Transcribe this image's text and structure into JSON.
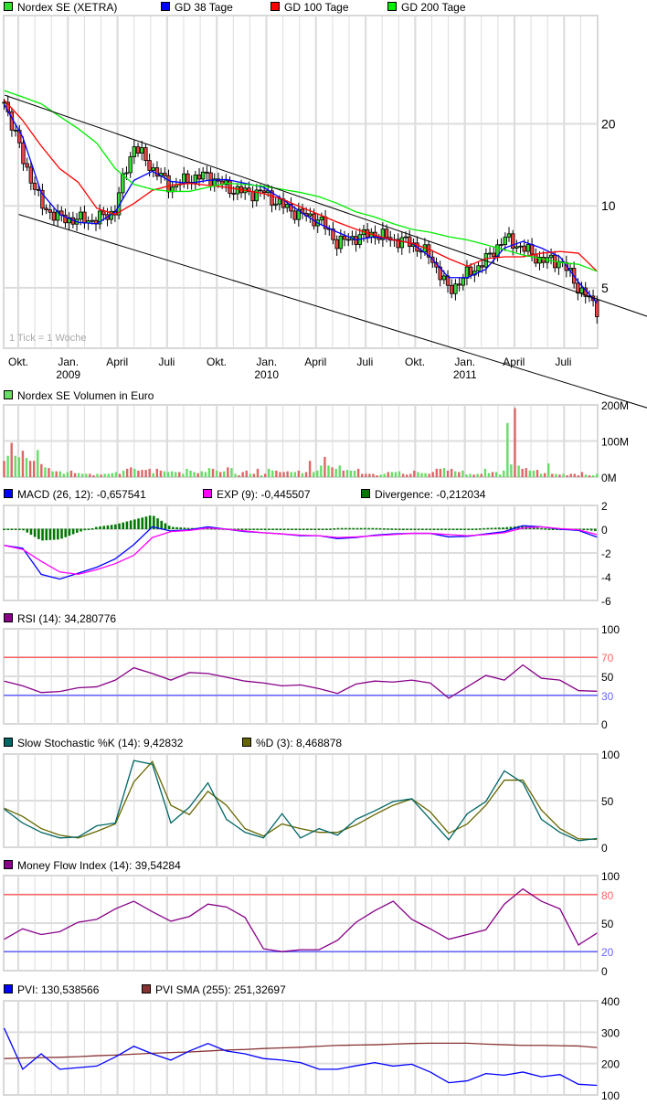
{
  "chart_data": [
    {
      "type": "candlestick",
      "legend": [
        {
          "label": "Nordex SE (XETRA)",
          "color": "#33dd33"
        },
        {
          "label": "GD 38 Tage",
          "color": "#0000ff"
        },
        {
          "label": "GD 100 Tage",
          "color": "#ff0000"
        },
        {
          "label": "GD 200 Tage",
          "color": "#00ee00"
        }
      ],
      "scale": "log",
      "ylim": [
        3,
        50
      ],
      "yticks": [
        {
          "value": 20,
          "label": "20"
        },
        {
          "value": 10,
          "label": "10"
        },
        {
          "value": 5,
          "label": "5"
        }
      ],
      "grid": true,
      "note": "1 Tick = 1 Woche",
      "date_range": [
        "2008-09-05",
        "2011-09-01"
      ],
      "xticks": [
        {
          "date": "2008-10-01",
          "label": "Okt."
        },
        {
          "date": "2009-01-01",
          "label": "Jan."
        },
        {
          "date": "2009-04-01",
          "label": "April"
        },
        {
          "date": "2009-07-01",
          "label": "Juli"
        },
        {
          "date": "2009-10-01",
          "label": "Okt."
        },
        {
          "date": "2010-01-01",
          "label": "Jan."
        },
        {
          "date": "2010-04-01",
          "label": "April"
        },
        {
          "date": "2010-07-01",
          "label": "Juli"
        },
        {
          "date": "2010-10-01",
          "label": "Okt."
        },
        {
          "date": "2011-01-01",
          "label": "Jan."
        },
        {
          "date": "2011-04-01",
          "label": "April"
        },
        {
          "date": "2011-07-01",
          "label": "Juli"
        }
      ],
      "year_labels": [
        {
          "date": "2009-01-01",
          "label": "2009"
        },
        {
          "date": "2010-01-01",
          "label": "2010"
        },
        {
          "date": "2011-01-01",
          "label": "2011"
        }
      ],
      "close": [
        24,
        14.8,
        10,
        9.0,
        8.9,
        8.9,
        9.6,
        16.6,
        13.7,
        11.7,
        12.6,
        12.9,
        11.7,
        11.2,
        11.2,
        10,
        9.3,
        8.9,
        7.3,
        7.7,
        7.9,
        7.5,
        7.3,
        6.5,
        4.85,
        5.6,
        6.3,
        7.6,
        7.0,
        6.3,
        6.3,
        5.0,
        4.2
      ],
      "series": [
        {
          "name": "GD 38 Tage",
          "color": "#0000ff",
          "values": [
            23.6,
            17.9,
            11.2,
            9.3,
            8.7,
            8.6,
            9.5,
            12.4,
            13.4,
            12.3,
            12.1,
            12.4,
            12.5,
            12.1,
            11.7,
            10.6,
            9.5,
            8.6,
            8.0,
            7.5,
            7.7,
            7.5,
            7.3,
            6.5,
            5.45,
            5.45,
            5.85,
            7.0,
            7.4,
            7.0,
            6.5,
            5.25,
            4.4
          ]
        },
        {
          "name": "GD 100 Tage",
          "color": "#ff0000",
          "values": [
            24.5,
            20.6,
            16.6,
            13.7,
            12.2,
            9.8,
            9.3,
            10.2,
            11.4,
            11.9,
            12.1,
            11.9,
            11.7,
            11.4,
            11.1,
            10.6,
            9.9,
            9.3,
            8.7,
            8.2,
            7.8,
            7.5,
            7.3,
            6.9,
            6.4,
            6.0,
            6.4,
            6.5,
            6.5,
            6.7,
            6.8,
            6.7,
            5.75
          ]
        },
        {
          "name": "GD 200 Tage",
          "color": "#00ee00",
          "values": [
            26.5,
            25.1,
            23.7,
            21.3,
            19.2,
            17.0,
            13.7,
            12.0,
            11.5,
            11.3,
            11.3,
            11.7,
            12.1,
            12.0,
            11.8,
            11.5,
            11.2,
            10.8,
            10.2,
            9.5,
            9.1,
            8.6,
            8.2,
            8.0,
            7.7,
            7.5,
            7.2,
            6.9,
            6.6,
            6.4,
            6.2,
            6.1,
            5.75
          ]
        }
      ],
      "trendlines": [
        {
          "start": [
            "2008-09-06",
            25.5
          ],
          "end": [
            "2011-12-07",
            3.9
          ]
        },
        {
          "start": [
            "2008-10-02",
            9.3
          ],
          "end": [
            "2011-12-07",
            1.8
          ]
        }
      ]
    },
    {
      "type": "bar",
      "legend": [
        {
          "label": "Nordex SE Volumen in Euro",
          "color": "#66dd66"
        }
      ],
      "ylim": [
        0,
        200
      ],
      "yticks": [
        {
          "value": 200,
          "label": "200M"
        },
        {
          "value": 100,
          "label": "100M"
        },
        {
          "value": 0,
          "label": "0M"
        }
      ],
      "colors": {
        "up": "#66dd66",
        "down": "#dd6666"
      },
      "values": [
        45,
        59,
        95,
        59,
        55,
        73,
        53,
        45,
        45,
        75,
        36,
        27,
        25,
        16,
        16,
        16,
        9,
        14,
        18,
        11,
        11,
        9,
        9,
        9,
        5,
        9,
        7,
        9,
        9,
        11,
        14,
        9,
        18,
        23,
        27,
        23,
        18,
        20,
        20,
        23,
        11,
        23,
        18,
        16,
        14,
        16,
        14,
        14,
        9,
        23,
        18,
        14,
        11,
        16,
        14,
        25,
        23,
        18,
        14,
        16,
        27,
        25,
        9,
        5,
        14,
        18,
        9,
        9,
        23,
        5,
        9,
        23,
        18,
        18,
        14,
        14,
        16,
        14,
        14,
        18,
        11,
        14,
        45,
        14,
        18,
        32,
        56,
        32,
        27,
        23,
        32,
        18,
        20,
        18,
        18,
        23,
        9,
        9,
        9,
        9,
        5,
        7,
        9,
        14,
        14,
        14,
        16,
        9,
        7,
        9,
        18,
        14,
        11,
        11,
        9,
        14,
        23,
        23,
        25,
        18,
        23,
        16,
        14,
        18,
        7,
        9,
        7,
        9,
        9,
        23,
        11,
        14,
        14,
        7,
        18,
        150,
        35,
        191,
        32,
        23,
        25,
        18,
        18,
        20,
        9,
        11,
        38,
        9,
        9,
        7,
        9,
        5,
        9,
        9,
        5,
        14,
        7,
        5,
        5,
        9
      ],
      "up": [
        0,
        1,
        0,
        1,
        1,
        0,
        1,
        0,
        0,
        1,
        0,
        1,
        0,
        1,
        0,
        1,
        1,
        1,
        0,
        0,
        1,
        1,
        1,
        0,
        0,
        1,
        0,
        1,
        1,
        1,
        1,
        0,
        1,
        0,
        0,
        1,
        0,
        0,
        0,
        0,
        1,
        0,
        0,
        1,
        1,
        1,
        1,
        0,
        1,
        1,
        1,
        1,
        0,
        1,
        1,
        1,
        0,
        1,
        0,
        1,
        0,
        1,
        1,
        0,
        0,
        0,
        1,
        0,
        0,
        1,
        0,
        1,
        1,
        0,
        0,
        0,
        0,
        1,
        1,
        0,
        1,
        0,
        0,
        1,
        1,
        1,
        0,
        1,
        0,
        1,
        1,
        0,
        1,
        1,
        1,
        0,
        0,
        0,
        0,
        0,
        0,
        1,
        1,
        0,
        1,
        1,
        1,
        0,
        0,
        0,
        0,
        1,
        1,
        1,
        0,
        0,
        0,
        0,
        1,
        0,
        0,
        1,
        0,
        1,
        1,
        1,
        0,
        1,
        0,
        1,
        1,
        0,
        1,
        1,
        1,
        1,
        1,
        0,
        1,
        0,
        0,
        1,
        1,
        0,
        1,
        0,
        1,
        0,
        1,
        0,
        1,
        0,
        0,
        0,
        0,
        0,
        1,
        0,
        1,
        1
      ]
    },
    {
      "type": "line",
      "legend": [
        {
          "label": "MACD (26, 12): -0,657541",
          "color": "#0000ff"
        },
        {
          "label": "EXP (9): -0,445507",
          "color": "#ff00ff"
        },
        {
          "label": "Divergence: -0,212034",
          "color": "#007700"
        }
      ],
      "ylim": [
        -6,
        2
      ],
      "yticks": [
        {
          "value": 2,
          "label": "2"
        },
        {
          "value": 0,
          "label": "0"
        },
        {
          "value": -2,
          "label": "-2"
        },
        {
          "value": -4,
          "label": "-4"
        },
        {
          "value": -6,
          "label": "-6"
        }
      ],
      "divergence": {
        "color": "#007700",
        "values": [
          0,
          -0.1,
          -1.0,
          -0.9,
          -0.3,
          0.2,
          0.4,
          0.8,
          1.2,
          0.2,
          0.1,
          0.1,
          0.05,
          -0.05,
          -0.05,
          -0.05,
          -0.05,
          -0.03,
          0.1,
          0.1,
          0.1,
          0.05,
          0.02,
          -0.03,
          -0.05,
          0.0,
          0.1,
          0.15,
          0.3,
          0.1,
          -0.02,
          -0.05,
          -0.21
        ]
      },
      "series": [
        {
          "name": "MACD (26, 12)",
          "color": "#0000ff",
          "values": [
            -1.36,
            -1.6,
            -3.8,
            -4.2,
            -3.7,
            -3.2,
            -2.5,
            -1.3,
            0.2,
            -0.15,
            -0.05,
            0.2,
            0.0,
            -0.2,
            -0.3,
            -0.4,
            -0.55,
            -0.55,
            -0.8,
            -0.7,
            -0.5,
            -0.4,
            -0.35,
            -0.35,
            -0.65,
            -0.6,
            -0.4,
            -0.2,
            0.3,
            0.2,
            0.0,
            -0.1,
            -0.66
          ]
        },
        {
          "name": "EXP (9)",
          "color": "#ff00ff",
          "values": [
            -1.36,
            -1.7,
            -2.7,
            -3.6,
            -3.8,
            -3.4,
            -2.9,
            -2.2,
            -0.7,
            -0.2,
            -0.1,
            0.1,
            0.0,
            -0.15,
            -0.3,
            -0.4,
            -0.5,
            -0.55,
            -0.7,
            -0.65,
            -0.55,
            -0.45,
            -0.35,
            -0.35,
            -0.45,
            -0.55,
            -0.45,
            -0.3,
            0.1,
            0.2,
            0.05,
            -0.05,
            -0.45
          ]
        }
      ]
    },
    {
      "type": "line",
      "legend": [
        {
          "label": "RSI (14): 34,280776",
          "color": "#880088"
        }
      ],
      "ylim": [
        0,
        100
      ],
      "yticks": [
        {
          "value": 100,
          "label": "100"
        },
        {
          "value": 70,
          "label": "70",
          "color": "#ff6666"
        },
        {
          "value": 50,
          "label": "50"
        },
        {
          "value": 30,
          "label": "30",
          "color": "#6666ff"
        },
        {
          "value": 0,
          "label": "0"
        }
      ],
      "hlines": [
        {
          "value": 70,
          "color": "#ff6666"
        },
        {
          "value": 30,
          "color": "#6666ff"
        }
      ],
      "series": [
        {
          "name": "RSI (14)",
          "color": "#880088",
          "values": [
            45,
            40,
            33,
            34,
            38,
            39,
            46,
            59,
            53,
            46,
            54,
            53,
            49,
            45,
            43,
            40,
            41,
            37,
            32,
            42,
            45,
            44,
            46,
            43,
            27,
            39,
            51,
            46,
            62,
            48,
            46,
            35,
            34.3
          ]
        }
      ]
    },
    {
      "type": "line",
      "legend": [
        {
          "label": "Slow Stochastic %K (14): 9,42832",
          "color": "#006666"
        },
        {
          "label": "%D (3): 8,468878",
          "color": "#666600"
        }
      ],
      "ylim": [
        0,
        100
      ],
      "yticks": [
        {
          "value": 100,
          "label": "100"
        },
        {
          "value": 50,
          "label": "50"
        },
        {
          "value": 0,
          "label": "0"
        }
      ],
      "series": [
        {
          "name": "%D (3)",
          "color": "#666600",
          "values": [
            42,
            33,
            20,
            13,
            10,
            17,
            25,
            70,
            92,
            45,
            35,
            60,
            45,
            20,
            12,
            25,
            20,
            16,
            16,
            24,
            35,
            45,
            52,
            38,
            15,
            25,
            45,
            72,
            72,
            40,
            20,
            9,
            8.5
          ]
        },
        {
          "name": "Slow Stochastic %K (14)",
          "color": "#006666",
          "values": [
            41,
            26,
            16,
            10,
            11,
            23,
            26,
            93,
            89,
            26,
            43,
            69,
            30,
            16,
            10,
            36,
            10,
            20,
            13,
            30,
            39,
            49,
            52,
            30,
            8,
            36,
            49,
            82,
            69,
            30,
            16,
            7,
            9.4
          ]
        }
      ]
    },
    {
      "type": "line",
      "legend": [
        {
          "label": "Money Flow Index (14): 39,54284",
          "color": "#880088"
        }
      ],
      "ylim": [
        0,
        100
      ],
      "yticks": [
        {
          "value": 100,
          "label": "100"
        },
        {
          "value": 80,
          "label": "80",
          "color": "#ff6666"
        },
        {
          "value": 50,
          "label": "50"
        },
        {
          "value": 20,
          "label": "20",
          "color": "#6666ff"
        },
        {
          "value": 0,
          "label": "0"
        }
      ],
      "hlines": [
        {
          "value": 80,
          "color": "#ff6666"
        },
        {
          "value": 20,
          "color": "#6666ff"
        }
      ],
      "series": [
        {
          "name": "Money Flow Index (14)",
          "color": "#880088",
          "values": [
            33,
            44,
            38,
            41,
            51,
            54,
            65,
            73,
            62,
            52,
            57,
            70,
            67,
            56,
            23,
            20,
            22,
            22,
            32,
            51,
            63,
            73,
            54,
            44,
            33,
            38,
            43,
            70,
            86,
            73,
            65,
            27,
            39.5
          ]
        }
      ]
    },
    {
      "type": "line",
      "legend": [
        {
          "label": "PVI: 130,538566",
          "color": "#0000ff"
        },
        {
          "label": "PVI SMA (255): 251,32697",
          "color": "#883333"
        }
      ],
      "ylim": [
        100,
        400
      ],
      "yticks": [
        {
          "value": 400,
          "label": "400"
        },
        {
          "value": 300,
          "label": "300"
        },
        {
          "value": 200,
          "label": "200"
        },
        {
          "value": 100,
          "label": "100"
        }
      ],
      "series": [
        {
          "name": "PVI SMA (255)",
          "color": "#883333",
          "values": [
            216,
            218,
            219,
            220,
            222,
            225,
            227,
            230,
            233,
            235,
            237,
            240,
            243,
            245,
            248,
            250,
            252,
            255,
            258,
            259,
            260,
            262,
            264,
            265,
            265,
            265,
            262,
            260,
            258,
            258,
            257,
            256,
            251
          ]
        },
        {
          "name": "PVI",
          "color": "#0000ff",
          "values": [
            313,
            182,
            231,
            182,
            187,
            192,
            221,
            255,
            231,
            211,
            240,
            264,
            240,
            231,
            216,
            211,
            203,
            182,
            182,
            193,
            203,
            192,
            198,
            173,
            139,
            145,
            168,
            163,
            173,
            158,
            165,
            134,
            130.5
          ]
        }
      ]
    }
  ]
}
